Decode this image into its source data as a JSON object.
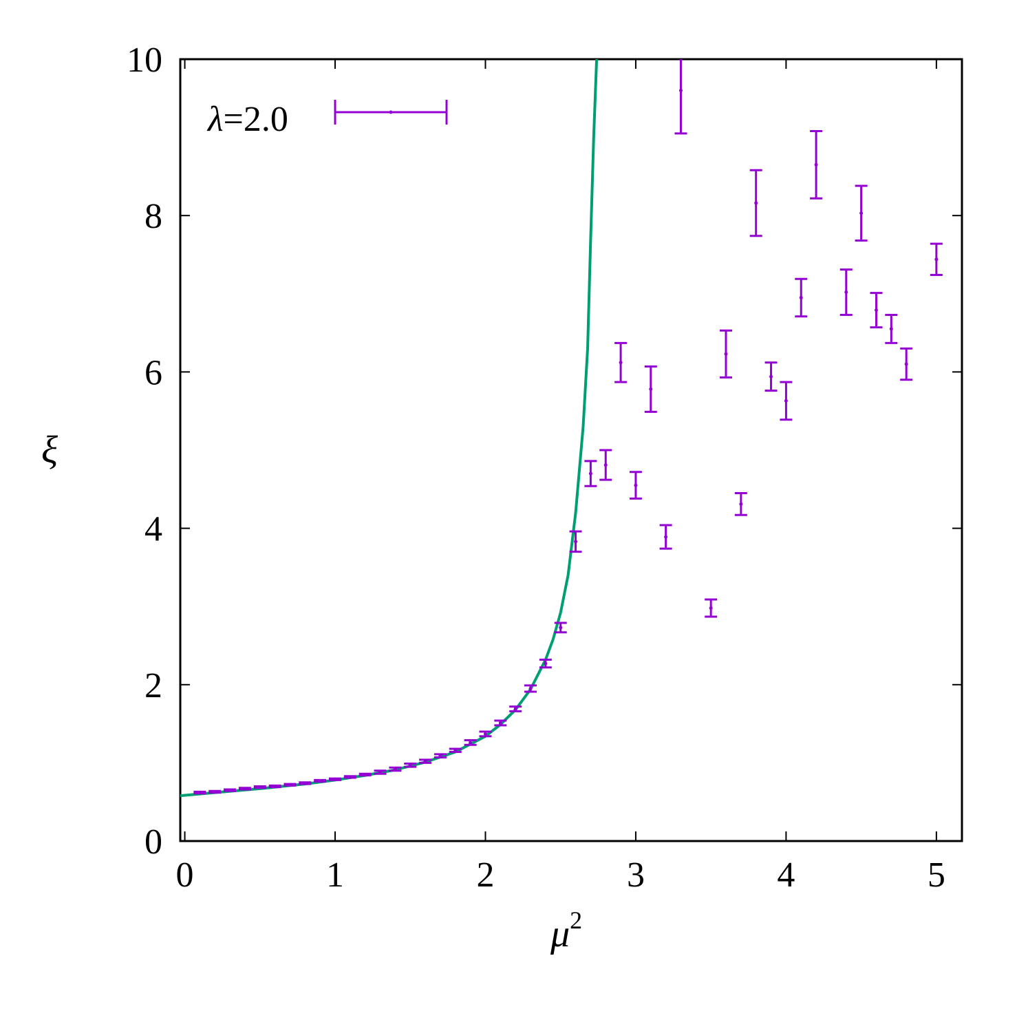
{
  "chart_data": {
    "type": "scatter",
    "xlabel": "μ",
    "xlabel_sup": "2",
    "ylabel": "ξ",
    "xlim": [
      -0.03,
      5.17
    ],
    "ylim": [
      0,
      10
    ],
    "xticks": [
      0,
      1,
      2,
      3,
      4,
      5
    ],
    "yticks": [
      0,
      2,
      4,
      6,
      8,
      10
    ],
    "xtick_labels": [
      "0",
      "1",
      "2",
      "3",
      "4",
      "5"
    ],
    "ytick_labels": [
      "0",
      "2",
      "4",
      "6",
      "8",
      "10"
    ],
    "grid": false,
    "legend_position": "top-left",
    "colors": {
      "points": "#9400d3",
      "curve": "#009e73"
    },
    "series": [
      {
        "name": "λ=2.0",
        "legend_greek": "λ",
        "legend_rest": "=2.0",
        "kind": "errorbars",
        "x": [
          0.1,
          0.2,
          0.3,
          0.4,
          0.5,
          0.6,
          0.7,
          0.8,
          0.9,
          1.0,
          1.1,
          1.2,
          1.3,
          1.4,
          1.5,
          1.6,
          1.7,
          1.8,
          1.9,
          2.0,
          2.1,
          2.2,
          2.3,
          2.4,
          2.5,
          2.6,
          2.7,
          2.8,
          2.9,
          3.0,
          3.1,
          3.2,
          3.3,
          3.5,
          3.6,
          3.7,
          3.8,
          3.9,
          4.0,
          4.1,
          4.2,
          4.4,
          4.5,
          4.6,
          4.7,
          4.8,
          5.0
        ],
        "y": [
          0.62,
          0.63,
          0.65,
          0.67,
          0.69,
          0.7,
          0.72,
          0.74,
          0.77,
          0.79,
          0.82,
          0.85,
          0.88,
          0.92,
          0.97,
          1.02,
          1.09,
          1.16,
          1.26,
          1.37,
          1.51,
          1.69,
          1.95,
          2.27,
          2.73,
          3.83,
          4.7,
          4.81,
          6.12,
          4.55,
          5.78,
          3.89,
          9.6,
          2.98,
          6.23,
          4.31,
          8.16,
          5.94,
          5.63,
          6.95,
          8.65,
          7.02,
          8.03,
          6.79,
          6.55,
          6.1,
          7.44
        ],
        "err": [
          0.01,
          0.01,
          0.01,
          0.01,
          0.01,
          0.01,
          0.01,
          0.01,
          0.01,
          0.01,
          0.01,
          0.01,
          0.02,
          0.02,
          0.02,
          0.02,
          0.02,
          0.02,
          0.03,
          0.03,
          0.03,
          0.03,
          0.04,
          0.05,
          0.06,
          0.13,
          0.16,
          0.19,
          0.25,
          0.17,
          0.29,
          0.15,
          0.55,
          0.11,
          0.3,
          0.14,
          0.42,
          0.18,
          0.24,
          0.24,
          0.43,
          0.29,
          0.35,
          0.22,
          0.18,
          0.2,
          0.2
        ]
      },
      {
        "name": "",
        "kind": "line",
        "x": [
          -0.03,
          0.2,
          0.5,
          0.8,
          1.0,
          1.2,
          1.4,
          1.6,
          1.8,
          2.0,
          2.1,
          2.2,
          2.3,
          2.4,
          2.45,
          2.5,
          2.55,
          2.6,
          2.65,
          2.68,
          2.7,
          2.72,
          2.74
        ],
        "y": [
          0.58,
          0.62,
          0.67,
          0.73,
          0.78,
          0.84,
          0.91,
          1.01,
          1.14,
          1.34,
          1.49,
          1.68,
          1.94,
          2.32,
          2.58,
          2.92,
          3.4,
          4.2,
          5.3,
          6.3,
          7.7,
          9.0,
          10.0
        ]
      }
    ]
  }
}
